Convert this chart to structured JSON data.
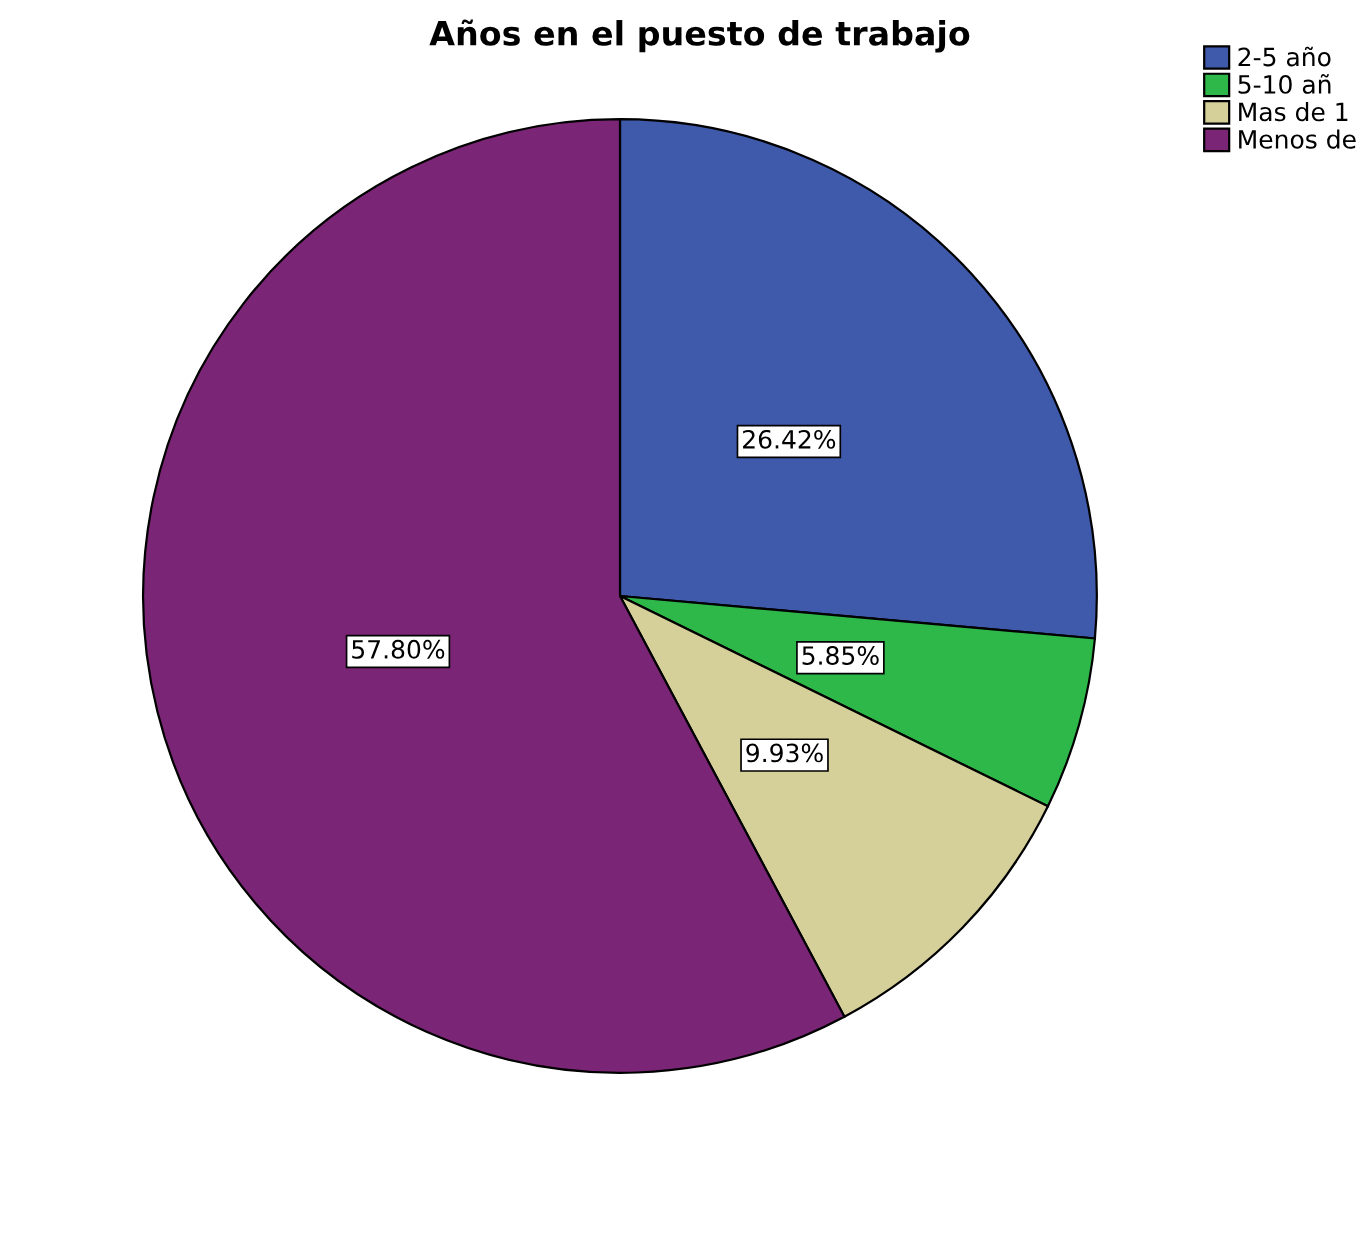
{
  "chart_data": {
    "type": "pie",
    "title": "Años en el puesto de trabajo",
    "categories": [
      "2-5 año",
      "5-10 añ",
      "Mas de 1",
      "Menos de"
    ],
    "values": [
      26.42,
      5.85,
      9.93,
      57.8
    ],
    "colors": [
      "#3f59ab",
      "#2eb84a",
      "#d5cf9a",
      "#7b2576"
    ],
    "value_labels": [
      "26.42%",
      "5.85%",
      "9.93%",
      "57.80%"
    ],
    "legend": "top right"
  }
}
